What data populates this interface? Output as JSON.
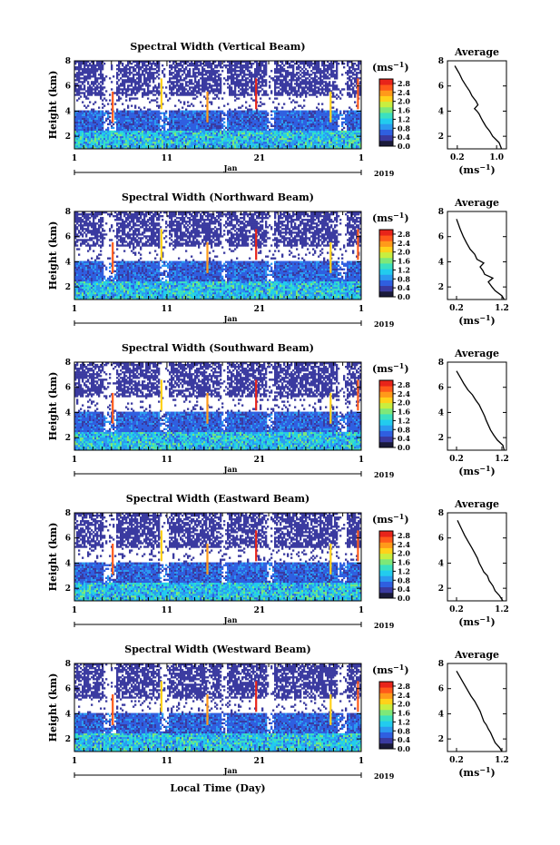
{
  "figure": {
    "xlabel": "Local Time (Day)",
    "month_label": "Jan",
    "year_label": "2019",
    "ylabel": "Height (km)",
    "unit_label": "(ms",
    "unit_exp": "−1",
    "unit_close": ")",
    "avg_title": "Average"
  },
  "colors": {
    "scale": [
      "#1a1a3a",
      "#3a3aa0",
      "#2f5fe0",
      "#2b9af0",
      "#22ccee",
      "#3be0c0",
      "#7ee878",
      "#c8ee40",
      "#ffd21a",
      "#ff9a1a",
      "#ff5a1a",
      "#e8241a"
    ],
    "background_field": "#3c3ca0"
  },
  "chart_data": [
    {
      "type": "heatmap",
      "title": "Spectral Width (Vertical Beam)",
      "x_ticks": [
        "1",
        "11",
        "21",
        "1"
      ],
      "y_ticks": [
        "2",
        "4",
        "6",
        "8"
      ],
      "ylim": [
        1,
        8
      ],
      "colorbar_ticks": [
        "0.0",
        "0.4",
        "0.8",
        "1.2",
        "1.6",
        "2.0",
        "2.4",
        "2.8"
      ],
      "colorbar_range": [
        0.0,
        3.0
      ],
      "avg_x_ticks": [
        "0.2",
        "1.0"
      ],
      "avg_xlim": [
        0.0,
        1.2
      ],
      "avg_profile_x": [
        1.1,
        1.05,
        0.92,
        0.86,
        0.78,
        0.72,
        0.68,
        0.64,
        0.6,
        0.55,
        0.62,
        0.58,
        0.5,
        0.45,
        0.38,
        0.3,
        0.24,
        0.15
      ],
      "avg_profile_y": [
        1.0,
        1.5,
        2.0,
        2.4,
        2.8,
        3.2,
        3.5,
        3.8,
        4.0,
        4.2,
        4.5,
        4.8,
        5.2,
        5.6,
        6.0,
        6.5,
        7.0,
        7.6
      ]
    },
    {
      "type": "heatmap",
      "title": "Spectral Width (Northward Beam)",
      "x_ticks": [
        "1",
        "11",
        "21",
        "1"
      ],
      "y_ticks": [
        "2",
        "4",
        "6",
        "8"
      ],
      "ylim": [
        1,
        8
      ],
      "colorbar_ticks": [
        "0.0",
        "0.4",
        "0.8",
        "1.2",
        "1.6",
        "2.0",
        "2.4",
        "2.8"
      ],
      "colorbar_range": [
        0.0,
        3.0
      ],
      "avg_x_ticks": [
        "0.2",
        "1.2"
      ],
      "avg_xlim": [
        0.0,
        1.3
      ],
      "avg_profile_x": [
        1.25,
        1.2,
        1.05,
        0.98,
        0.9,
        1.0,
        0.82,
        0.78,
        0.72,
        0.8,
        0.65,
        0.6,
        0.5,
        0.42,
        0.35,
        0.28,
        0.2
      ],
      "avg_profile_y": [
        1.0,
        1.3,
        1.7,
        2.0,
        2.4,
        2.7,
        3.0,
        3.3,
        3.6,
        3.9,
        4.2,
        4.6,
        5.0,
        5.5,
        6.0,
        6.6,
        7.4
      ]
    },
    {
      "type": "heatmap",
      "title": "Spectral Width (Southward Beam)",
      "x_ticks": [
        "1",
        "11",
        "21",
        "1"
      ],
      "y_ticks": [
        "2",
        "4",
        "6",
        "8"
      ],
      "ylim": [
        1,
        8
      ],
      "colorbar_ticks": [
        "0.0",
        "0.4",
        "0.8",
        "1.2",
        "1.6",
        "2.0",
        "2.4",
        "2.8"
      ],
      "colorbar_range": [
        0.0,
        3.0
      ],
      "avg_x_ticks": [
        "0.2",
        "1.2"
      ],
      "avg_xlim": [
        0.0,
        1.3
      ],
      "avg_profile_x": [
        1.25,
        1.22,
        1.1,
        1.02,
        0.95,
        0.9,
        0.85,
        0.82,
        0.78,
        0.74,
        0.7,
        0.62,
        0.55,
        0.45,
        0.36,
        0.28,
        0.2
      ],
      "avg_profile_y": [
        1.0,
        1.4,
        1.8,
        2.2,
        2.6,
        3.0,
        3.4,
        3.7,
        4.0,
        4.3,
        4.6,
        5.0,
        5.4,
        5.8,
        6.3,
        6.8,
        7.3
      ]
    },
    {
      "type": "heatmap",
      "title": "Spectral Width (Eastward Beam)",
      "x_ticks": [
        "1",
        "11",
        "21",
        "1"
      ],
      "y_ticks": [
        "2",
        "4",
        "6",
        "8"
      ],
      "ylim": [
        1,
        8
      ],
      "colorbar_ticks": [
        "0.0",
        "0.4",
        "0.8",
        "1.2",
        "1.6",
        "2.0",
        "2.4",
        "2.8"
      ],
      "colorbar_range": [
        0.0,
        3.0
      ],
      "avg_x_ticks": [
        "0.2",
        "1.2"
      ],
      "avg_xlim": [
        0.0,
        1.3
      ],
      "avg_profile_x": [
        1.22,
        1.15,
        1.05,
        1.0,
        0.92,
        0.88,
        0.8,
        0.76,
        0.7,
        0.66,
        0.6,
        0.54,
        0.46,
        0.38,
        0.3,
        0.22
      ],
      "avg_profile_y": [
        1.0,
        1.4,
        1.8,
        2.2,
        2.6,
        3.0,
        3.3,
        3.6,
        4.0,
        4.4,
        4.8,
        5.2,
        5.7,
        6.2,
        6.8,
        7.4
      ]
    },
    {
      "type": "heatmap",
      "title": "Spectral Width (Westward Beam)",
      "x_ticks": [
        "1",
        "11",
        "21",
        "1"
      ],
      "y_ticks": [
        "2",
        "4",
        "6",
        "8"
      ],
      "ylim": [
        1,
        8
      ],
      "colorbar_ticks": [
        "0.0",
        "0.4",
        "0.8",
        "1.2",
        "1.6",
        "2.0",
        "2.4",
        "2.8"
      ],
      "colorbar_range": [
        0.0,
        3.0
      ],
      "avg_x_ticks": [
        "0.2",
        "1.2"
      ],
      "avg_xlim": [
        0.0,
        1.3
      ],
      "avg_profile_x": [
        1.2,
        1.15,
        1.05,
        1.0,
        0.95,
        0.9,
        0.86,
        0.8,
        0.76,
        0.72,
        0.66,
        0.6,
        0.52,
        0.44,
        0.36,
        0.28,
        0.2
      ],
      "avg_profile_y": [
        1.0,
        1.3,
        1.7,
        2.1,
        2.5,
        2.8,
        3.1,
        3.4,
        3.8,
        4.2,
        4.6,
        5.0,
        5.4,
        5.9,
        6.4,
        6.9,
        7.4
      ]
    }
  ]
}
